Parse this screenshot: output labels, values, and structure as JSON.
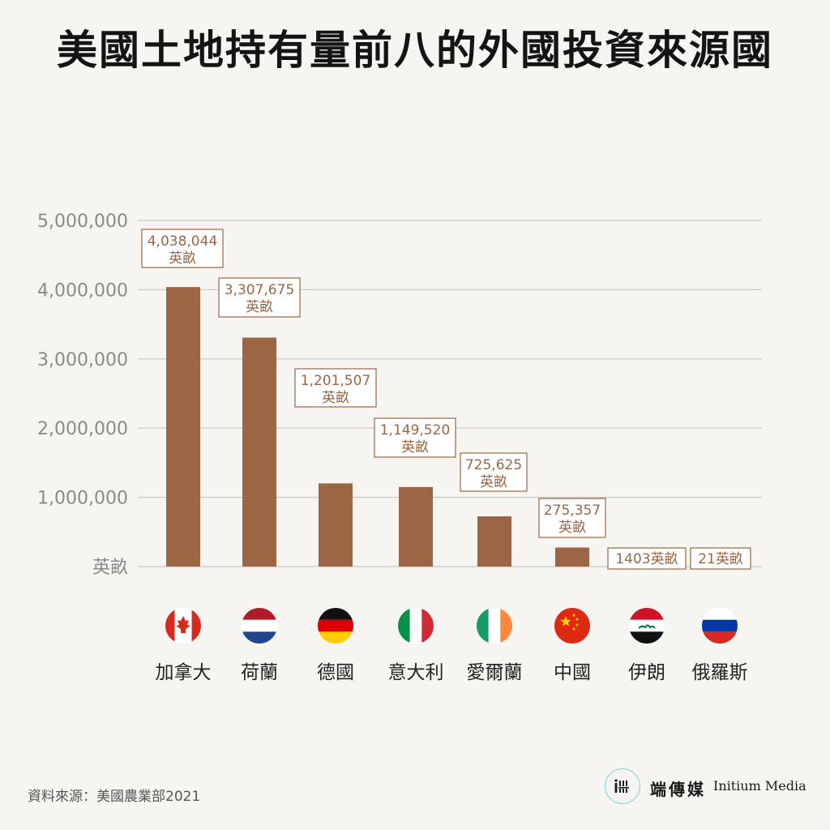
{
  "title": "美國土地持有量前八的外國投資來源國",
  "source": "資料來源：美國農業部2021",
  "brand": {
    "name": "端傳媒",
    "english": "Initium Media",
    "logo_icon": "initium-logo-icon"
  },
  "colors": {
    "bar": "#9c6644",
    "grid": "#c8c8c8",
    "label": "#9c6644",
    "axis_text": "#8a8a8a",
    "category_text": "#222222"
  },
  "chart_data": {
    "type": "bar",
    "categories": [
      "加拿大",
      "荷蘭",
      "德國",
      "意大利",
      "愛爾蘭",
      "中國",
      "伊朗",
      "俄羅斯"
    ],
    "values": [
      4038044,
      3307675,
      1201507,
      1149520,
      725625,
      275357,
      1403,
      21
    ],
    "data_labels": [
      {
        "value": "4,038,044",
        "unit": "英畝"
      },
      {
        "value": "3,307,675",
        "unit": "英畝"
      },
      {
        "value": "1,201,507",
        "unit": "英畝"
      },
      {
        "value": "1,149,520",
        "unit": "英畝"
      },
      {
        "value": "725,625",
        "unit": "英畝"
      },
      {
        "value": "275,357",
        "unit": "英畝"
      },
      {
        "value": "1403",
        "unit": "英畝"
      },
      {
        "value": "21",
        "unit": "英畝"
      }
    ],
    "flags": [
      "canada-flag-icon",
      "netherlands-flag-icon",
      "germany-flag-icon",
      "italy-flag-icon",
      "ireland-flag-icon",
      "china-flag-icon",
      "iraq-flag-icon",
      "russia-flag-icon"
    ],
    "y_ticks": [
      {
        "value": 0,
        "label": "英畝"
      },
      {
        "value": 1000000,
        "label": "1,000,000"
      },
      {
        "value": 2000000,
        "label": "2,000,000"
      },
      {
        "value": 3000000,
        "label": "3,000,000"
      },
      {
        "value": 4000000,
        "label": "4,000,000"
      },
      {
        "value": 5000000,
        "label": "5,000,000"
      }
    ],
    "ylim": [
      0,
      5000000
    ],
    "grid": true,
    "legend": "none"
  }
}
